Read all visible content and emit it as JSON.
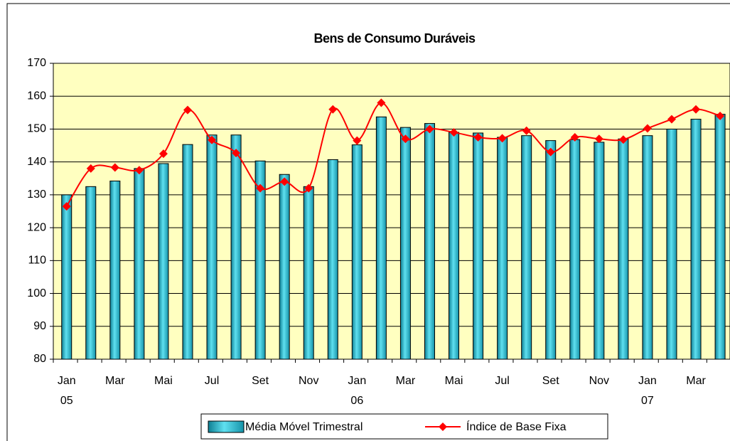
{
  "chart_data": {
    "type": "combo",
    "title": "Bens de Consumo Duráveis",
    "categories": [
      "Jan",
      null,
      "Mar",
      null,
      "Mai",
      null,
      "Jul",
      null,
      "Set",
      null,
      "Nov",
      null,
      "Jan",
      null,
      "Mar",
      null,
      "Mai",
      null,
      "Jul",
      null,
      "Set",
      null,
      "Nov",
      null,
      "Jan",
      null,
      "Mar",
      null
    ],
    "category_years": [
      "05",
      null,
      null,
      null,
      null,
      null,
      null,
      null,
      null,
      null,
      null,
      null,
      "06",
      null,
      null,
      null,
      null,
      null,
      null,
      null,
      null,
      null,
      null,
      null,
      "07",
      null,
      null,
      null
    ],
    "series": [
      {
        "name": "Média Móvel Trimestral",
        "type": "bar",
        "color": "#29b8cc",
        "values": [
          130,
          132.5,
          134.2,
          138,
          139.5,
          145.3,
          148.2,
          148.2,
          140.3,
          136.2,
          132.5,
          140.7,
          145.2,
          153.7,
          150.5,
          151.7,
          149,
          148.8,
          147.5,
          148,
          146.5,
          146.8,
          146,
          147,
          148,
          150,
          153,
          154.5
        ]
      },
      {
        "name": "Índice de Base Fixa",
        "type": "line",
        "color": "#ff0000",
        "values": [
          126.5,
          138,
          138.3,
          137.5,
          142.5,
          155.8,
          146.7,
          142.7,
          132,
          134,
          132,
          156,
          146.5,
          158,
          147,
          150,
          149,
          147.5,
          147.2,
          149.5,
          143,
          147.5,
          147,
          146.8,
          150.2,
          153,
          156,
          154
        ]
      }
    ],
    "ylim": [
      80,
      170
    ],
    "yticks": [
      80,
      90,
      100,
      110,
      120,
      130,
      140,
      150,
      160,
      170
    ],
    "grid": true,
    "plot_background": "#ffffc0",
    "legend": "bottom"
  }
}
